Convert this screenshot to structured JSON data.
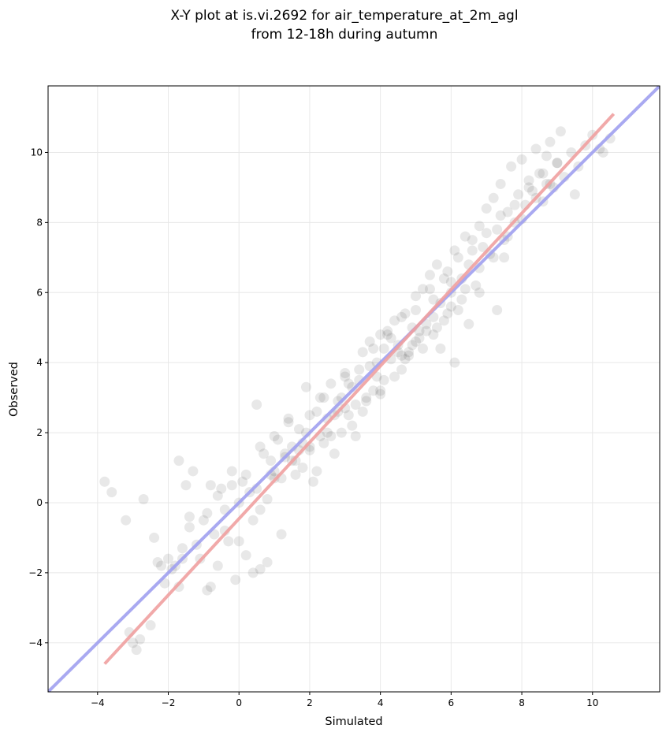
{
  "chart_data": {
    "type": "scatter",
    "title_lines": [
      "X-Y plot at is.vi.2692 for air_temperature_at_2m_agl",
      "from 12-18h during autumn"
    ],
    "xlabel": "Simulated",
    "ylabel": "Observed",
    "xlim": [
      -5.4,
      11.9
    ],
    "ylim": [
      -5.4,
      11.9
    ],
    "xticks": [
      -4,
      -2,
      0,
      2,
      4,
      6,
      8,
      10
    ],
    "yticks": [
      -4,
      -2,
      0,
      2,
      4,
      6,
      8,
      10
    ],
    "tick_labels": [
      "−4",
      "−2",
      "0",
      "2",
      "4",
      "6",
      "8",
      "10"
    ],
    "grid": true,
    "point_color": "#000000",
    "point_opacity": 0.09,
    "points": {
      "x": [
        -3.8,
        -3.6,
        -3.2,
        -3.1,
        -2.9,
        -2.7,
        -2.5,
        -2.4,
        -2.2,
        -2.1,
        -2.0,
        -1.9,
        -1.8,
        -1.7,
        -1.6,
        -1.5,
        -1.4,
        -1.3,
        -1.2,
        -1.0,
        -0.9,
        -0.8,
        -0.7,
        -0.6,
        -0.5,
        -0.4,
        -0.3,
        -0.2,
        -0.1,
        0.0,
        0.1,
        0.2,
        0.3,
        0.4,
        0.5,
        0.6,
        0.7,
        0.8,
        0.9,
        1.0,
        1.1,
        1.2,
        1.3,
        1.4,
        1.5,
        1.6,
        1.7,
        1.8,
        1.9,
        2.0,
        2.1,
        2.2,
        2.3,
        2.4,
        2.5,
        2.6,
        2.7,
        2.8,
        2.9,
        3.0,
        3.1,
        3.2,
        3.3,
        3.4,
        3.5,
        3.6,
        3.7,
        3.8,
        3.9,
        4.0,
        4.1,
        4.2,
        4.3,
        4.4,
        4.5,
        4.6,
        4.7,
        4.8,
        4.9,
        5.0,
        5.1,
        5.2,
        5.3,
        5.4,
        5.5,
        5.6,
        5.7,
        5.8,
        5.9,
        6.0,
        6.1,
        6.2,
        6.3,
        6.4,
        6.5,
        6.6,
        6.7,
        6.8,
        6.9,
        7.0,
        7.1,
        7.2,
        7.3,
        7.4,
        7.5,
        7.6,
        7.7,
        7.8,
        7.9,
        8.0,
        8.1,
        8.2,
        8.3,
        8.4,
        8.5,
        8.6,
        8.7,
        8.8,
        8.9,
        9.0,
        9.1,
        9.2,
        9.4,
        9.6,
        9.8,
        10.0,
        10.2,
        10.5,
        -2.3,
        -1.7,
        -1.4,
        -1.1,
        -0.9,
        -0.6,
        -0.4,
        -0.2,
        0.0,
        0.2,
        0.4,
        0.6,
        0.8,
        1.0,
        1.2,
        1.4,
        1.6,
        1.8,
        2.0,
        2.2,
        2.4,
        2.6,
        2.8,
        3.0,
        3.2,
        3.4,
        3.6,
        3.8,
        4.0,
        4.2,
        4.4,
        4.6,
        4.8,
        5.0,
        5.2,
        5.4,
        5.6,
        5.8,
        6.0,
        6.2,
        6.4,
        6.6,
        6.8,
        7.0,
        7.2,
        7.4,
        7.6,
        7.8,
        8.0,
        8.2,
        8.4,
        8.6,
        8.8,
        9.0,
        3.5,
        4.5,
        5.0,
        5.5,
        6.0,
        6.5,
        4.0,
        3.0,
        2.5,
        1.5,
        0.5,
        1.0,
        2.0,
        5.5,
        6.8,
        7.5,
        -3.0,
        -2.8,
        -1.6,
        -0.8,
        0.6,
        1.9,
        3.3,
        4.7,
        6.1,
        7.3,
        8.7,
        9.5,
        10.3,
        4.9,
        3.9,
        4.3,
        5.3,
        5.7,
        2.9,
        3.7,
        4.1,
        4.6,
        5.1,
        5.9,
        6.3,
        2.3,
        2.7,
        3.1,
        1.7,
        1.3,
        0.9
      ],
      "y": [
        0.6,
        0.3,
        -0.5,
        -3.7,
        -4.2,
        0.1,
        -3.5,
        -1.0,
        -1.8,
        -2.3,
        -1.6,
        -1.9,
        -1.8,
        1.2,
        -1.3,
        0.5,
        -0.4,
        0.9,
        -1.2,
        -0.5,
        -2.5,
        0.5,
        -0.9,
        -1.8,
        0.4,
        -0.2,
        -1.1,
        0.9,
        -2.2,
        0.0,
        0.6,
        -1.5,
        0.3,
        -2.0,
        2.8,
        -0.2,
        1.4,
        -1.7,
        1.2,
        0.9,
        1.8,
        -0.9,
        1.4,
        2.4,
        1.6,
        0.8,
        2.1,
        1.7,
        3.3,
        1.6,
        0.6,
        2.6,
        3.0,
        1.7,
        2.4,
        3.4,
        1.4,
        2.9,
        2.0,
        3.7,
        2.5,
        3.3,
        2.8,
        3.5,
        4.3,
        3.0,
        4.6,
        3.2,
        4.0,
        4.8,
        3.5,
        4.9,
        4.1,
        5.2,
        4.5,
        3.8,
        5.4,
        4.3,
        5.0,
        5.9,
        4.7,
        6.1,
        4.9,
        6.5,
        5.3,
        6.8,
        5.7,
        5.2,
        6.6,
        6.0,
        7.2,
        5.5,
        6.4,
        7.6,
        6.8,
        7.5,
        6.2,
        7.9,
        7.3,
        8.4,
        7.1,
        8.7,
        7.8,
        9.1,
        7.5,
        8.3,
        9.6,
        8.0,
        8.8,
        9.8,
        8.5,
        9.2,
        8.9,
        10.1,
        9.4,
        8.6,
        9.9,
        10.3,
        9.0,
        9.7,
        10.6,
        9.3,
        10.0,
        9.6,
        10.2,
        10.5,
        10.1,
        10.4,
        -1.7,
        -2.4,
        -0.7,
        -1.6,
        -0.3,
        0.2,
        -0.8,
        0.5,
        -1.1,
        0.8,
        -0.5,
        1.6,
        0.1,
        1.9,
        0.7,
        2.3,
        1.2,
        1.0,
        2.5,
        0.9,
        3.0,
        1.9,
        2.6,
        3.6,
        2.2,
        3.8,
        2.9,
        4.4,
        3.1,
        4.8,
        3.6,
        5.3,
        4.2,
        5.5,
        4.4,
        6.1,
        5.0,
        6.4,
        5.6,
        7.0,
        6.1,
        7.2,
        6.7,
        7.7,
        7.0,
        8.2,
        7.6,
        8.5,
        8.1,
        9.0,
        8.7,
        9.4,
        9.1,
        9.7,
        2.6,
        4.3,
        4.6,
        5.8,
        6.3,
        5.1,
        3.2,
        2.7,
        2.0,
        1.2,
        0.4,
        0.7,
        1.5,
        4.8,
        6.0,
        7.0,
        -4.0,
        -3.9,
        -1.6,
        -2.4,
        -1.9,
        2.0,
        1.9,
        4.1,
        4.0,
        5.5,
        9.1,
        8.8,
        10.0,
        4.5,
        3.6,
        4.7,
        5.1,
        4.4,
        3.0,
        3.9,
        4.4,
        4.2,
        4.9,
        5.4,
        5.8,
        1.9,
        2.5,
        3.4,
        1.5,
        1.3,
        0.8
      ]
    },
    "fit_line": {
      "color": "#f0a0a0",
      "x": [
        -3.8,
        10.6
      ],
      "y": [
        -4.6,
        11.1
      ]
    },
    "identity_line": {
      "color": "#a0a0f0",
      "x": [
        -5.4,
        11.9
      ],
      "y": [
        -5.4,
        11.9
      ]
    }
  }
}
